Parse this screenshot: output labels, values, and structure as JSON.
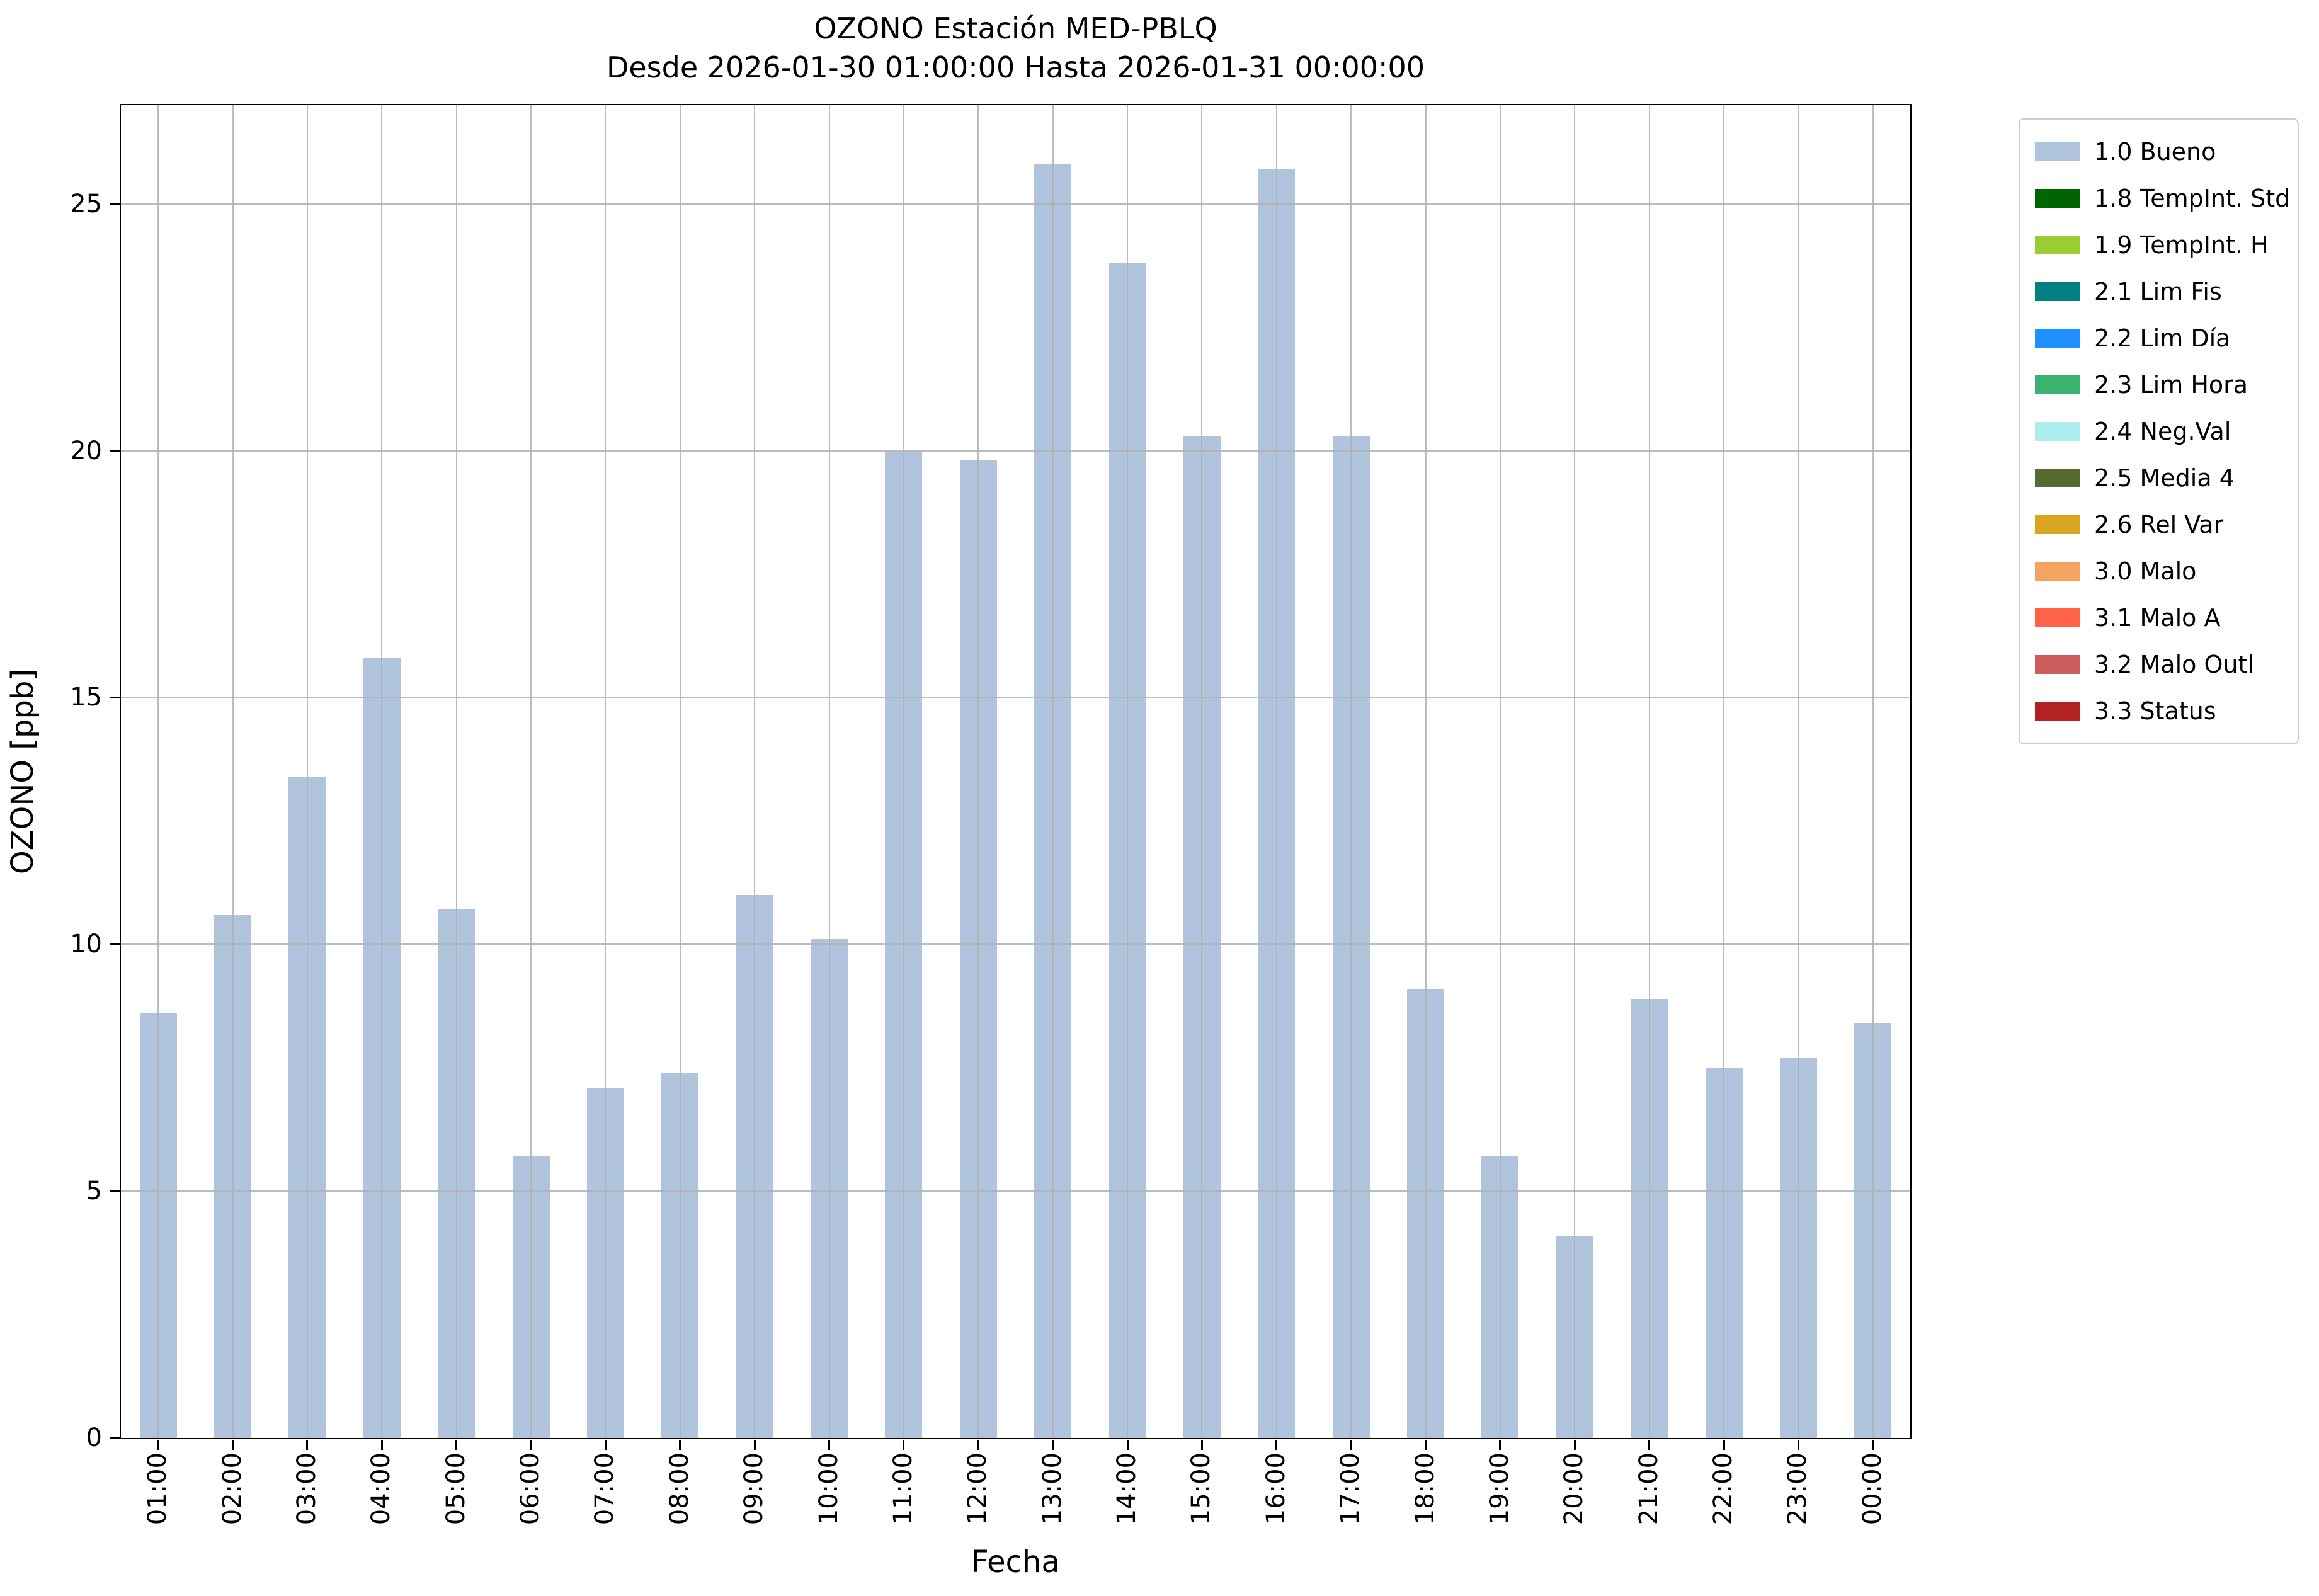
{
  "figure": {
    "title": "OZONO Estación MED-PBLQ",
    "subtitle": "Desde 2026-01-30 01:00:00 Hasta 2026-01-31 00:00:00"
  },
  "chart_data": {
    "type": "bar",
    "title": "OZONO Estación MED-PBLQ",
    "subtitle": "Desde 2026-01-30 01:00:00 Hasta 2026-01-31 00:00:00",
    "xlabel": "Fecha",
    "ylabel": "OZONO [ppb]",
    "ylim": [
      0,
      27
    ],
    "yticks": [
      0,
      5,
      10,
      15,
      20,
      25
    ],
    "grid": true,
    "legend_position": "outside-upper-right",
    "bar_color": "#b0c4de",
    "series_name": "1.0 Bueno",
    "categories": [
      "01:00",
      "02:00",
      "03:00",
      "04:00",
      "05:00",
      "06:00",
      "07:00",
      "08:00",
      "09:00",
      "10:00",
      "11:00",
      "12:00",
      "13:00",
      "14:00",
      "15:00",
      "16:00",
      "17:00",
      "18:00",
      "19:00",
      "20:00",
      "21:00",
      "22:00",
      "23:00",
      "00:00"
    ],
    "values": [
      8.6,
      10.6,
      13.4,
      15.8,
      10.7,
      5.7,
      7.1,
      7.4,
      11.0,
      10.1,
      20.0,
      19.8,
      25.8,
      23.8,
      20.3,
      25.7,
      20.3,
      9.1,
      5.7,
      4.1,
      8.9,
      7.5,
      7.7,
      8.4
    ],
    "legend": [
      {
        "label": "1.0 Bueno",
        "color": "#b0c4de"
      },
      {
        "label": "1.8 TempInt. Std",
        "color": "#006400"
      },
      {
        "label": "1.9 TempInt. H",
        "color": "#9acd32"
      },
      {
        "label": "2.1 Lim Fis",
        "color": "#008080"
      },
      {
        "label": "2.2 Lim Día",
        "color": "#1e90ff"
      },
      {
        "label": "2.3 Lim Hora",
        "color": "#3cb371"
      },
      {
        "label": "2.4 Neg.Val",
        "color": "#afeeee"
      },
      {
        "label": "2.5 Media 4",
        "color": "#556b2f"
      },
      {
        "label": "2.6 Rel Var",
        "color": "#daa520"
      },
      {
        "label": "3.0 Malo",
        "color": "#f4a460"
      },
      {
        "label": "3.1 Malo A",
        "color": "#ff6347"
      },
      {
        "label": "3.2 Malo Outl",
        "color": "#cd5c5c"
      },
      {
        "label": "3.3 Status",
        "color": "#b22222"
      }
    ]
  }
}
